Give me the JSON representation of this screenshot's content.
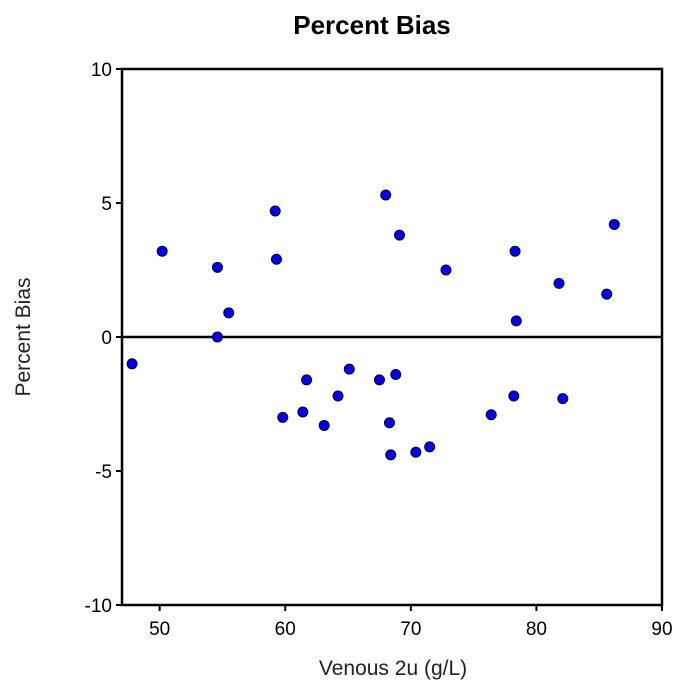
{
  "chart_data": {
    "type": "scatter",
    "title": "Percent Bias",
    "xlabel": "Venous 2u (g/L)",
    "ylabel": "Percent Bias",
    "xlim": [
      47,
      90
    ],
    "ylim": [
      -10,
      10
    ],
    "xticks": [
      50,
      60,
      70,
      80,
      90
    ],
    "yticks": [
      10,
      5,
      0,
      -5,
      -10
    ],
    "reference_line_y": 0,
    "grid": false,
    "marker_color": "#0000ee",
    "series": [
      {
        "points": [
          [
            47.8,
            -1.0
          ],
          [
            50.2,
            3.2
          ],
          [
            54.6,
            2.6
          ],
          [
            54.6,
            0.0
          ],
          [
            55.5,
            0.9
          ],
          [
            59.2,
            4.7
          ],
          [
            59.3,
            2.9
          ],
          [
            59.8,
            -3.0
          ],
          [
            61.4,
            -2.8
          ],
          [
            61.7,
            -1.6
          ],
          [
            63.1,
            -3.3
          ],
          [
            64.2,
            -2.2
          ],
          [
            65.1,
            -1.2
          ],
          [
            67.5,
            -1.6
          ],
          [
            68.0,
            5.3
          ],
          [
            68.3,
            -3.2
          ],
          [
            68.4,
            -4.4
          ],
          [
            68.8,
            -1.4
          ],
          [
            69.1,
            3.8
          ],
          [
            70.4,
            -4.3
          ],
          [
            71.5,
            -4.1
          ],
          [
            72.8,
            2.5
          ],
          [
            76.4,
            -2.9
          ],
          [
            78.2,
            -2.2
          ],
          [
            78.3,
            3.2
          ],
          [
            78.4,
            0.6
          ],
          [
            81.8,
            2.0
          ],
          [
            82.1,
            -2.3
          ],
          [
            85.6,
            1.6
          ],
          [
            86.2,
            4.2
          ]
        ]
      }
    ]
  }
}
